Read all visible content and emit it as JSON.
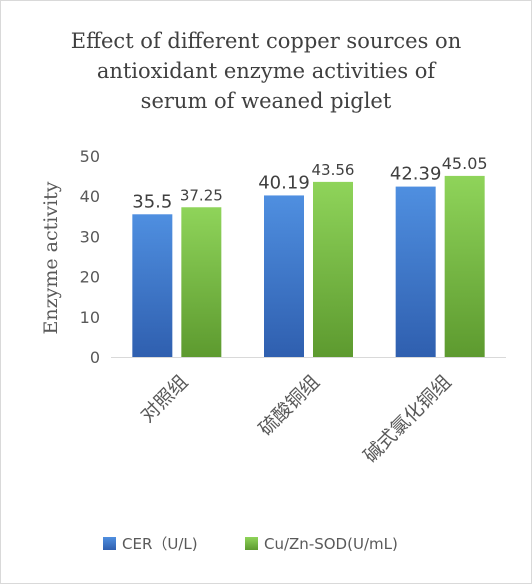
{
  "chart_data": {
    "type": "bar",
    "title": "Effect of different copper sources on antioxidant enzyme activities of serum of weaned piglet",
    "title_lines": [
      "Effect of different copper sources on",
      "antioxidant enzyme activities of",
      "serum of weaned piglet"
    ],
    "ylabel": "Enzyme activity",
    "xlabel": "",
    "ylim": [
      0,
      50
    ],
    "yticks": [
      "0",
      "10",
      "20",
      "30",
      "40",
      "50"
    ],
    "grid": false,
    "legend_position": "bottom",
    "categories": [
      "对照组",
      "硫酸铜组",
      "碱式氯化铜组"
    ],
    "series": [
      {
        "name": "CER（U/L)",
        "color": "#4472c4",
        "values": [
          35.5,
          40.19,
          42.39
        ],
        "labels": [
          "35.5",
          "40.19",
          "42.39"
        ]
      },
      {
        "name": "Cu/Zn-SOD(U/mL)",
        "color": "#70ad47",
        "values": [
          37.25,
          43.56,
          45.05
        ],
        "labels": [
          "37.25",
          "43.56",
          "45.05"
        ]
      }
    ]
  }
}
